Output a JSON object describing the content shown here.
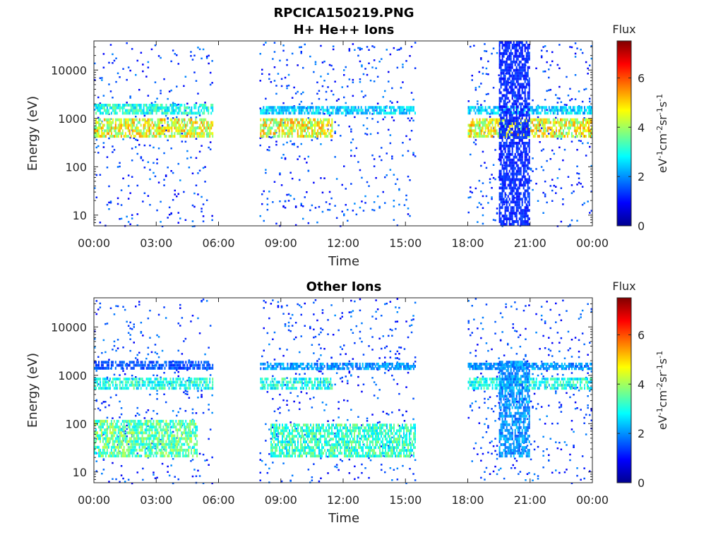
{
  "figure_title": "RPCICA150219.PNG",
  "colors": {
    "axis": "#262626",
    "background": "#ffffff"
  },
  "colorbar": {
    "label": "Flux",
    "units_base": [
      "eV",
      "cm",
      "sr",
      "s"
    ],
    "units_exp": [
      "-1",
      "-2",
      "-1",
      "-1"
    ],
    "range": [
      0,
      7.5
    ],
    "ticks": [
      "0",
      "2",
      "4",
      "6"
    ],
    "colormap": "jet"
  },
  "chart_data": [
    {
      "type": "heatmap",
      "title": "H+ He++ Ions",
      "xlabel": "Time",
      "ylabel": "Energy (eV)",
      "yscale": "log",
      "ylim": [
        6,
        40000
      ],
      "xlim": [
        "00:00",
        "24:00"
      ],
      "x_ticks": [
        "00:00",
        "03:00",
        "06:00",
        "09:00",
        "12:00",
        "15:00",
        "18:00",
        "21:00",
        "00:00"
      ],
      "y_ticks": [
        "10",
        "100",
        "1000",
        "10000"
      ],
      "data_gaps": [
        [
          "05:45",
          "08:00"
        ],
        [
          "15:30",
          "18:00"
        ]
      ],
      "features": [
        {
          "time_range": [
            "00:00",
            "05:45"
          ],
          "energy_range": [
            400,
            1000
          ],
          "flux": 4.5
        },
        {
          "time_range": [
            "00:00",
            "05:45"
          ],
          "energy_range": [
            1200,
            2000
          ],
          "flux": 3.0
        },
        {
          "time_range": [
            "08:00",
            "11:30"
          ],
          "energy_range": [
            400,
            1000
          ],
          "flux": 4.5
        },
        {
          "time_range": [
            "08:00",
            "15:30"
          ],
          "energy_range": [
            1200,
            1800
          ],
          "flux": 2.5
        },
        {
          "time_range": [
            "18:00",
            "24:00"
          ],
          "energy_range": [
            400,
            1000
          ],
          "flux": 4.5
        },
        {
          "time_range": [
            "18:00",
            "24:00"
          ],
          "energy_range": [
            1200,
            1800
          ],
          "flux": 2.5
        },
        {
          "time_range": [
            "19:30",
            "21:00"
          ],
          "energy_range": [
            6,
            40000
          ],
          "flux": 1.2
        }
      ]
    },
    {
      "type": "heatmap",
      "title": "Other Ions",
      "xlabel": "Time",
      "ylabel": "Energy (eV)",
      "yscale": "log",
      "ylim": [
        6,
        40000
      ],
      "xlim": [
        "00:00",
        "24:00"
      ],
      "x_ticks": [
        "00:00",
        "03:00",
        "06:00",
        "09:00",
        "12:00",
        "15:00",
        "18:00",
        "21:00",
        "00:00"
      ],
      "y_ticks": [
        "10",
        "100",
        "1000",
        "10000"
      ],
      "data_gaps": [
        [
          "05:45",
          "08:00"
        ],
        [
          "15:30",
          "18:00"
        ]
      ],
      "features": [
        {
          "time_range": [
            "00:00",
            "05:45"
          ],
          "energy_range": [
            1300,
            2000
          ],
          "flux": 1.5
        },
        {
          "time_range": [
            "00:00",
            "05:45"
          ],
          "energy_range": [
            500,
            900
          ],
          "flux": 3.0
        },
        {
          "time_range": [
            "00:00",
            "05:00"
          ],
          "energy_range": [
            20,
            120
          ],
          "flux": 3.5
        },
        {
          "time_range": [
            "08:00",
            "15:30"
          ],
          "energy_range": [
            1300,
            1800
          ],
          "flux": 2.0
        },
        {
          "time_range": [
            "08:00",
            "11:30"
          ],
          "energy_range": [
            500,
            900
          ],
          "flux": 3.0
        },
        {
          "time_range": [
            "08:30",
            "15:30"
          ],
          "energy_range": [
            20,
            100
          ],
          "flux": 3.2
        },
        {
          "time_range": [
            "18:00",
            "24:00"
          ],
          "energy_range": [
            1300,
            1800
          ],
          "flux": 2.0
        },
        {
          "time_range": [
            "18:00",
            "24:00"
          ],
          "energy_range": [
            500,
            900
          ],
          "flux": 3.0
        },
        {
          "time_range": [
            "19:30",
            "21:00"
          ],
          "energy_range": [
            20,
            2000
          ],
          "flux": 2.0
        }
      ]
    }
  ]
}
